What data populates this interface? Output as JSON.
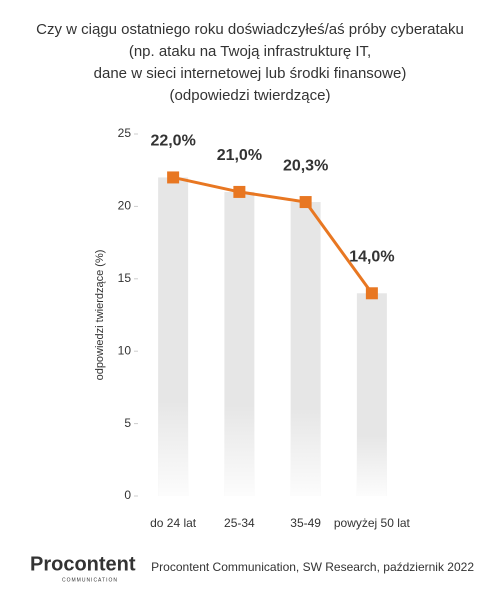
{
  "chart_data": {
    "type": "bar",
    "title": [
      "Czy w ciągu ostatniego roku doświadczyłeś/aś próby cyberataku",
      "(np. ataku na Twoją infrastrukturę IT,",
      "dane w sieci internetowej lub środki finansowe)",
      "(odpowiedzi twierdzące)"
    ],
    "y_label": "odpowiedzi twierdzące (%)",
    "categories": [
      "do 24 lat",
      "25-34",
      "35-49",
      "powyżej 50 lat"
    ],
    "values": [
      22.0,
      21.0,
      20.3,
      14.0
    ],
    "value_labels": [
      "22,0%",
      "21,0%",
      "20,3%",
      "14,0%"
    ],
    "bar_color": "#e6e6e6",
    "line_color": "#e87722",
    "ylim": [
      0,
      25
    ],
    "yticks": [
      0,
      5,
      10,
      15,
      20,
      25
    ]
  },
  "footer": {
    "logo": "Procontent",
    "logo_sub": "COMMUNICATION",
    "source": "Procontent Communication, SW Research, październik 2022"
  }
}
